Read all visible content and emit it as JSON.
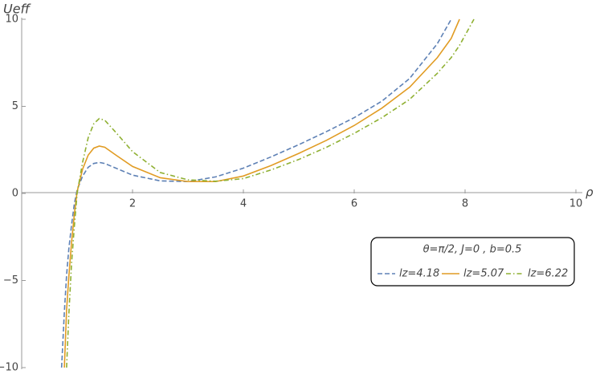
{
  "chart_data": {
    "type": "line",
    "x_label": "ρ",
    "y_label": "Ueff",
    "legend_title": "θ=π/2,  J=0 ,  b=0.5",
    "x": [
      0.72,
      0.77,
      0.81,
      0.85,
      0.9,
      0.95,
      1.0,
      1.1,
      1.2,
      1.3,
      1.4,
      1.5,
      1.7,
      2.0,
      2.5,
      3.0,
      3.5,
      4.0,
      4.5,
      5.0,
      5.5,
      6.0,
      6.5,
      7.0,
      7.5,
      7.75,
      7.9,
      8.16
    ],
    "series": [
      {
        "name": "lz=4.18",
        "color": "#5e81b5",
        "style": "dashed",
        "values": [
          -10,
          -6.8,
          -4.7,
          -3.2,
          -1.8,
          -0.6,
          0.2,
          1.0,
          1.5,
          1.72,
          1.78,
          1.72,
          1.45,
          1.05,
          0.72,
          0.68,
          0.95,
          1.45,
          2.1,
          2.8,
          3.55,
          4.35,
          5.3,
          6.6,
          8.6,
          10,
          null,
          null
        ]
      },
      {
        "name": "lz=5.07",
        "color": "#e19c24",
        "style": "solid",
        "values": [
          null,
          -10,
          -6.7,
          -4.8,
          -2.8,
          -1.2,
          0.1,
          1.4,
          2.2,
          2.6,
          2.72,
          2.65,
          2.2,
          1.55,
          0.9,
          0.68,
          0.68,
          1.0,
          1.6,
          2.3,
          3.05,
          3.9,
          4.9,
          6.1,
          7.8,
          8.9,
          10,
          null
        ]
      },
      {
        "name": "lz=6.22",
        "color": "#8fb032",
        "style": "dashdot",
        "values": [
          null,
          null,
          -10,
          -7,
          -4,
          -1.9,
          0.0,
          1.8,
          3.2,
          4.0,
          4.3,
          4.2,
          3.5,
          2.4,
          1.2,
          0.78,
          0.7,
          0.85,
          1.35,
          1.95,
          2.65,
          3.45,
          4.35,
          5.4,
          6.9,
          7.8,
          8.5,
          10
        ]
      }
    ],
    "xlim": [
      0,
      10
    ],
    "ylim": [
      -10,
      10
    ],
    "xticks": [
      2,
      4,
      6,
      8,
      10
    ],
    "yticks": [
      {
        "value": -10,
        "label": "−10"
      },
      {
        "value": -5,
        "label": "−5"
      },
      0,
      5,
      10
    ],
    "legend_position": "lower right"
  }
}
